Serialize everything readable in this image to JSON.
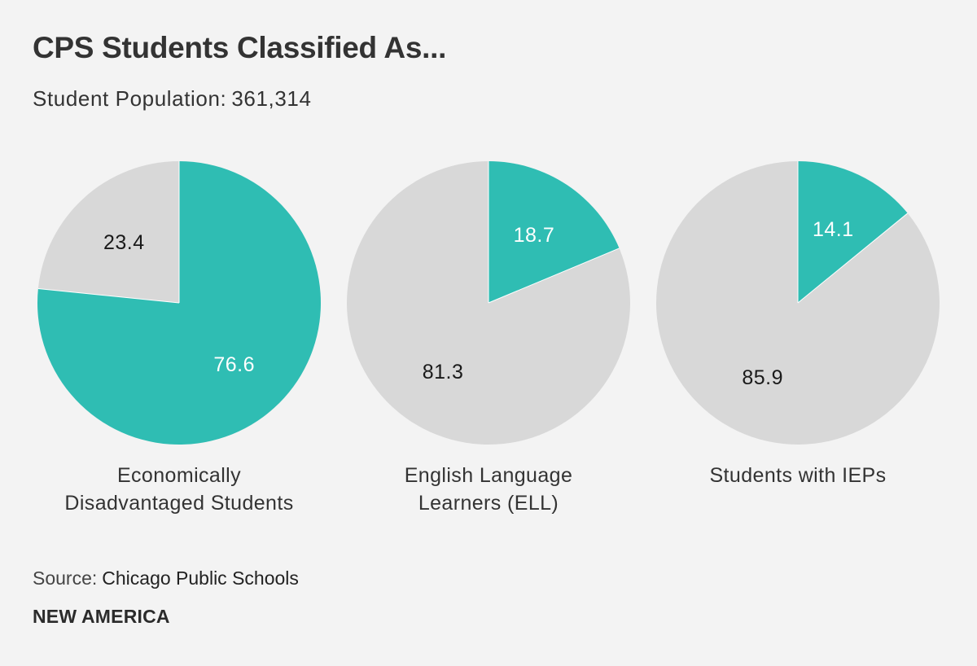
{
  "chart_data": {
    "type": "pie",
    "title": "CPS Students Classified As...",
    "subtitle_label": "Student Population:",
    "subtitle_value": "361,314",
    "colors": {
      "highlight": "#2fbdb3",
      "remainder": "#d8d8d8",
      "highlight_text": "#ffffff",
      "remainder_text": "#1a1a1a"
    },
    "pies": [
      {
        "caption": [
          "Economically",
          "Disadvantaged Students"
        ],
        "highlight_value": 76.6,
        "highlight_label": "76.6",
        "remainder_value": 23.4,
        "remainder_label": "23.4"
      },
      {
        "caption": [
          "English Language",
          "Learners (ELL)"
        ],
        "highlight_value": 18.7,
        "highlight_label": "18.7",
        "remainder_value": 81.3,
        "remainder_label": "81.3"
      },
      {
        "caption": [
          "Students with IEPs"
        ],
        "highlight_value": 14.1,
        "highlight_label": "14.1",
        "remainder_value": 85.9,
        "remainder_label": "85.9"
      }
    ]
  },
  "footer": {
    "source_label": "Source:",
    "source_value": "Chicago Public Schools",
    "brand": "NEW AMERICA"
  }
}
